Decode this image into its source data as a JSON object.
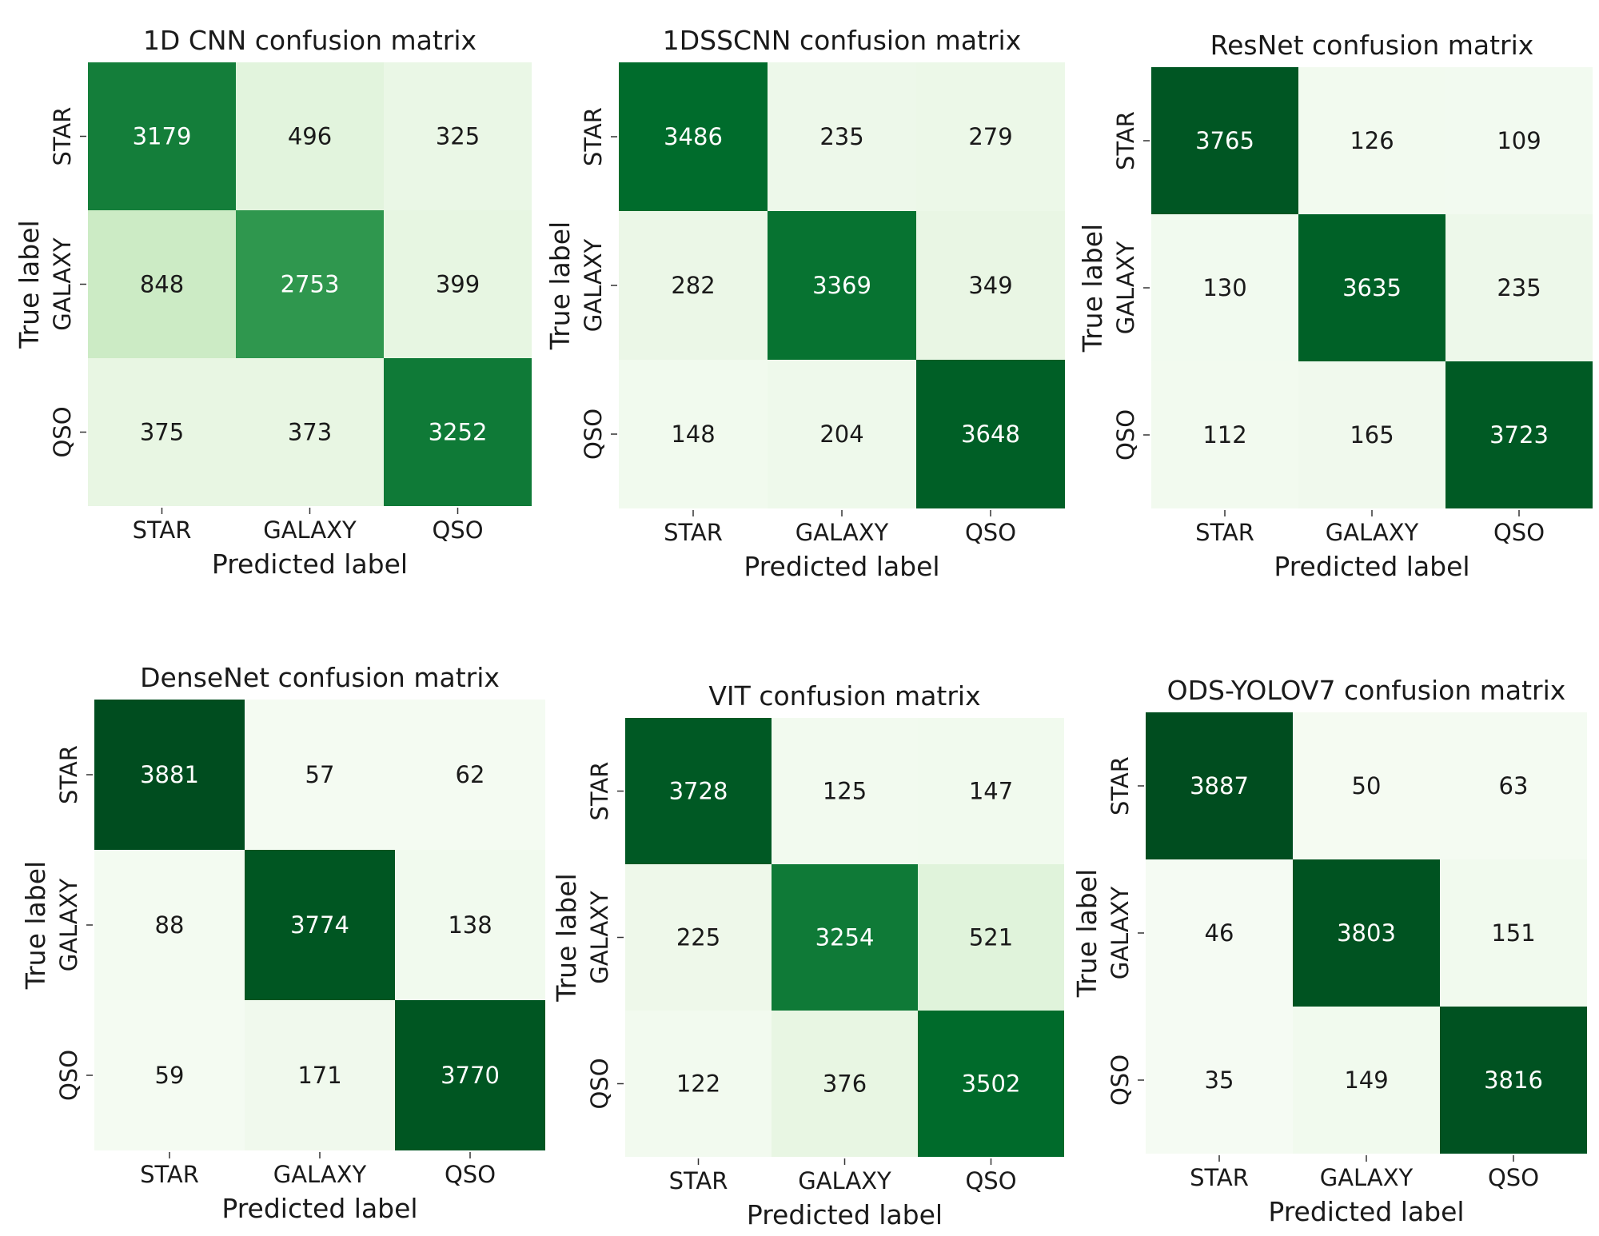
{
  "chart_data": [
    {
      "type": "heatmap",
      "title": "1D CNN confusion matrix",
      "xlabel": "Predicted label",
      "ylabel": "True label",
      "x_categories": [
        "STAR",
        "GALAXY",
        "QSO"
      ],
      "y_categories": [
        "STAR",
        "GALAXY",
        "QSO"
      ],
      "values": [
        [
          3179,
          496,
          325
        ],
        [
          848,
          2753,
          399
        ],
        [
          375,
          373,
          3252
        ]
      ],
      "colormap": "Greens",
      "value_range": [
        0,
        4000
      ],
      "grid": false,
      "colors": {
        "low": "#f7fcf5",
        "high": "#00441b"
      }
    },
    {
      "type": "heatmap",
      "title": "1DSSCNN confusion matrix",
      "xlabel": "Predicted label",
      "ylabel": "True label",
      "x_categories": [
        "STAR",
        "GALAXY",
        "QSO"
      ],
      "y_categories": [
        "STAR",
        "GALAXY",
        "QSO"
      ],
      "values": [
        [
          3486,
          235,
          279
        ],
        [
          282,
          3369,
          349
        ],
        [
          148,
          204,
          3648
        ]
      ],
      "colormap": "Greens",
      "value_range": [
        0,
        4000
      ],
      "grid": false,
      "colors": {
        "low": "#f7fcf5",
        "high": "#00441b"
      }
    },
    {
      "type": "heatmap",
      "title": "ResNet confusion matrix",
      "xlabel": "Predicted label",
      "ylabel": "True label",
      "x_categories": [
        "STAR",
        "GALAXY",
        "QSO"
      ],
      "y_categories": [
        "STAR",
        "GALAXY",
        "QSO"
      ],
      "values": [
        [
          3765,
          126,
          109
        ],
        [
          130,
          3635,
          235
        ],
        [
          112,
          165,
          3723
        ]
      ],
      "colormap": "Greens",
      "value_range": [
        0,
        4000
      ],
      "grid": false,
      "colors": {
        "low": "#f7fcf5",
        "high": "#00441b"
      }
    },
    {
      "type": "heatmap",
      "title": "DenseNet confusion matrix",
      "xlabel": "Predicted label",
      "ylabel": "True label",
      "x_categories": [
        "STAR",
        "GALAXY",
        "QSO"
      ],
      "y_categories": [
        "STAR",
        "GALAXY",
        "QSO"
      ],
      "values": [
        [
          3881,
          57,
          62
        ],
        [
          88,
          3774,
          138
        ],
        [
          59,
          171,
          3770
        ]
      ],
      "colormap": "Greens",
      "value_range": [
        0,
        4000
      ],
      "grid": false,
      "colors": {
        "low": "#f7fcf5",
        "high": "#00441b"
      }
    },
    {
      "type": "heatmap",
      "title": "VIT confusion matrix",
      "xlabel": "Predicted label",
      "ylabel": "True label",
      "x_categories": [
        "STAR",
        "GALAXY",
        "QSO"
      ],
      "y_categories": [
        "STAR",
        "GALAXY",
        "QSO"
      ],
      "values": [
        [
          3728,
          125,
          147
        ],
        [
          225,
          3254,
          521
        ],
        [
          122,
          376,
          3502
        ]
      ],
      "colormap": "Greens",
      "value_range": [
        0,
        4000
      ],
      "grid": false,
      "colors": {
        "low": "#f7fcf5",
        "high": "#00441b"
      }
    },
    {
      "type": "heatmap",
      "title": "ODS-YOLOV7 confusion matrix",
      "xlabel": "Predicted label",
      "ylabel": "True label",
      "x_categories": [
        "STAR",
        "GALAXY",
        "QSO"
      ],
      "y_categories": [
        "STAR",
        "GALAXY",
        "QSO"
      ],
      "values": [
        [
          3887,
          50,
          63
        ],
        [
          46,
          3803,
          151
        ],
        [
          35,
          149,
          3816
        ]
      ],
      "colormap": "Greens",
      "value_range": [
        0,
        4000
      ],
      "grid": false,
      "colors": {
        "low": "#f7fcf5",
        "high": "#00441b"
      }
    }
  ],
  "colors": {
    "background": "#ffffff",
    "text_dark": "#1a1a1a",
    "text_light": "#ffffff",
    "tick_mark": "#333333"
  }
}
